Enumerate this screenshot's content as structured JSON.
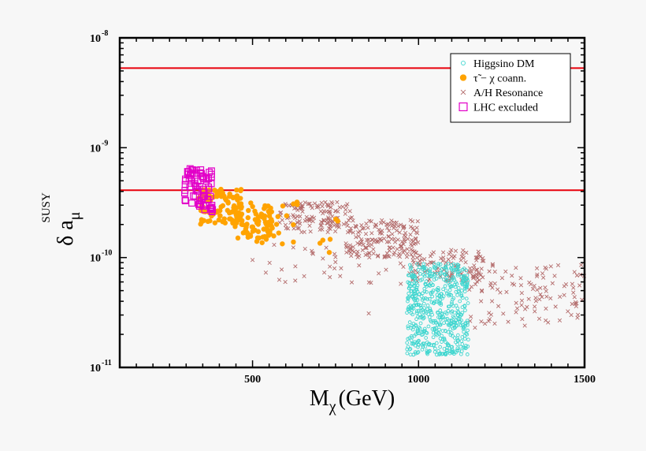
{
  "chart_data": {
    "type": "scatter",
    "title": "",
    "xlabel": {
      "main": "M",
      "sub": "χ",
      "unit": "(GeV)"
    },
    "ylabel": {
      "main": "δ a",
      "sub": "μ",
      "sup": "SUSY"
    },
    "xlim": [
      100,
      1500
    ],
    "ylim": [
      1e-11,
      1e-08
    ],
    "y_scale": "log",
    "grid": false,
    "legend_position": "top-right",
    "x_ticks": [
      {
        "value": 500,
        "label": "500"
      },
      {
        "value": 1000,
        "label": "1000"
      },
      {
        "value": 1500,
        "label": "1500"
      }
    ],
    "y_ticks": [
      {
        "value": 1e-08,
        "mantissa": "10",
        "exponent": "-8"
      },
      {
        "value": 1e-09,
        "mantissa": "10",
        "exponent": "-9"
      },
      {
        "value": 1e-10,
        "mantissa": "10",
        "exponent": "-10"
      },
      {
        "value": 1e-11,
        "mantissa": "10",
        "exponent": "-11"
      }
    ],
    "hlines": [
      {
        "y": 5.3e-09,
        "color": "#e8000b"
      },
      {
        "y": 4.1e-10,
        "color": "#e8000b"
      }
    ],
    "series": [
      {
        "name": "Higgsino DM",
        "marker": "circle-open",
        "color": "#3fd6cf",
        "regions": [
          {
            "x": [
              965,
              1150
            ],
            "y": [
              1.3e-11,
              8.8e-11
            ],
            "count": 560
          }
        ]
      },
      {
        "name": "τ̃ − χ  coann.",
        "marker": "circle-filled",
        "color": "#ffa300",
        "regions": [
          {
            "x": [
              335,
              470
            ],
            "y": [
              2e-10,
              4.2e-10
            ],
            "count": 95
          },
          {
            "x": [
              440,
              560
            ],
            "y": [
              1.4e-10,
              3.2e-10
            ],
            "count": 70
          },
          {
            "x": [
              520,
              640
            ],
            "y": [
              1.2e-10,
              3.3e-10
            ],
            "count": 18
          },
          {
            "x": [
              680,
              760
            ],
            "y": [
              1.1e-10,
              2.3e-10
            ],
            "count": 6
          }
        ]
      },
      {
        "name": "A/H Resonance",
        "marker": "x",
        "color": "#b36b6b",
        "regions": [
          {
            "x": [
              580,
              800
            ],
            "y": [
              1.7e-10,
              3.2e-10
            ],
            "count": 130
          },
          {
            "x": [
              780,
              1000
            ],
            "y": [
              1e-10,
              2.2e-10
            ],
            "count": 170
          },
          {
            "x": [
              980,
              1200
            ],
            "y": [
              6e-11,
              1.2e-10
            ],
            "count": 110
          },
          {
            "x": [
              1150,
              1500
            ],
            "y": [
              2.5e-11,
              9e-11
            ],
            "count": 110
          },
          {
            "x": [
              550,
              1000
            ],
            "y": [
              5.5e-11,
              1.4e-10
            ],
            "count": 40
          }
        ],
        "points": [
          {
            "x": 500,
            "y": 9.5e-11
          },
          {
            "x": 540,
            "y": 7.3e-11
          },
          {
            "x": 850,
            "y": 3.1e-11
          },
          {
            "x": 1170,
            "y": 2.3e-11
          },
          {
            "x": 1200,
            "y": 2.5e-11
          },
          {
            "x": 1270,
            "y": 2.6e-11
          },
          {
            "x": 1320,
            "y": 2.4e-11
          },
          {
            "x": 1460,
            "y": 3e-11
          }
        ]
      },
      {
        "name": "LHC excluded",
        "marker": "square-open",
        "color": "#e200c8",
        "regions": [
          {
            "x": [
              295,
              380
            ],
            "y": [
              2.6e-10,
              6.5e-10
            ],
            "count": 75
          }
        ]
      }
    ]
  }
}
